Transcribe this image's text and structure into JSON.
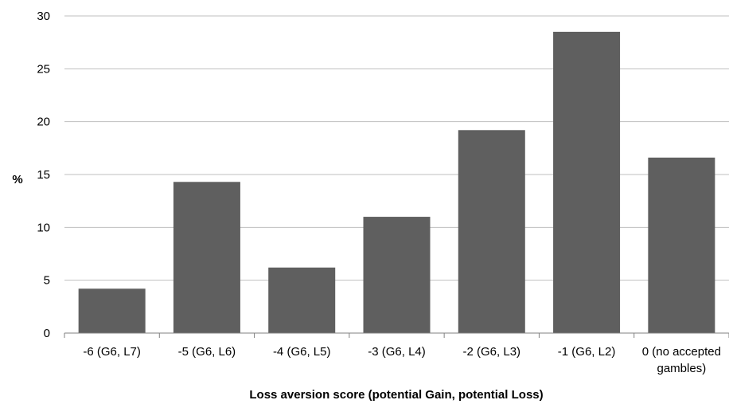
{
  "chart_data": {
    "type": "bar",
    "title": "",
    "xlabel": "Loss aversion score (potential Gain, potential Loss)",
    "ylabel": "%",
    "ylim": [
      0,
      30
    ],
    "yticks": [
      0,
      5,
      10,
      15,
      20,
      25,
      30
    ],
    "grid": true,
    "bar_color": "#5f5f5f",
    "grid_color": "#bfbfbf",
    "categories": [
      [
        "-6 (G6, L7)"
      ],
      [
        "-5 (G6, L6)"
      ],
      [
        "-4 (G6, L5)"
      ],
      [
        "-3 (G6, L4)"
      ],
      [
        "-2 (G6, L3)"
      ],
      [
        "-1 (G6, L2)"
      ],
      [
        "0 (no accepted",
        "gambles)"
      ]
    ],
    "values": [
      4.2,
      14.3,
      6.2,
      11.0,
      19.2,
      28.5,
      16.6
    ]
  }
}
